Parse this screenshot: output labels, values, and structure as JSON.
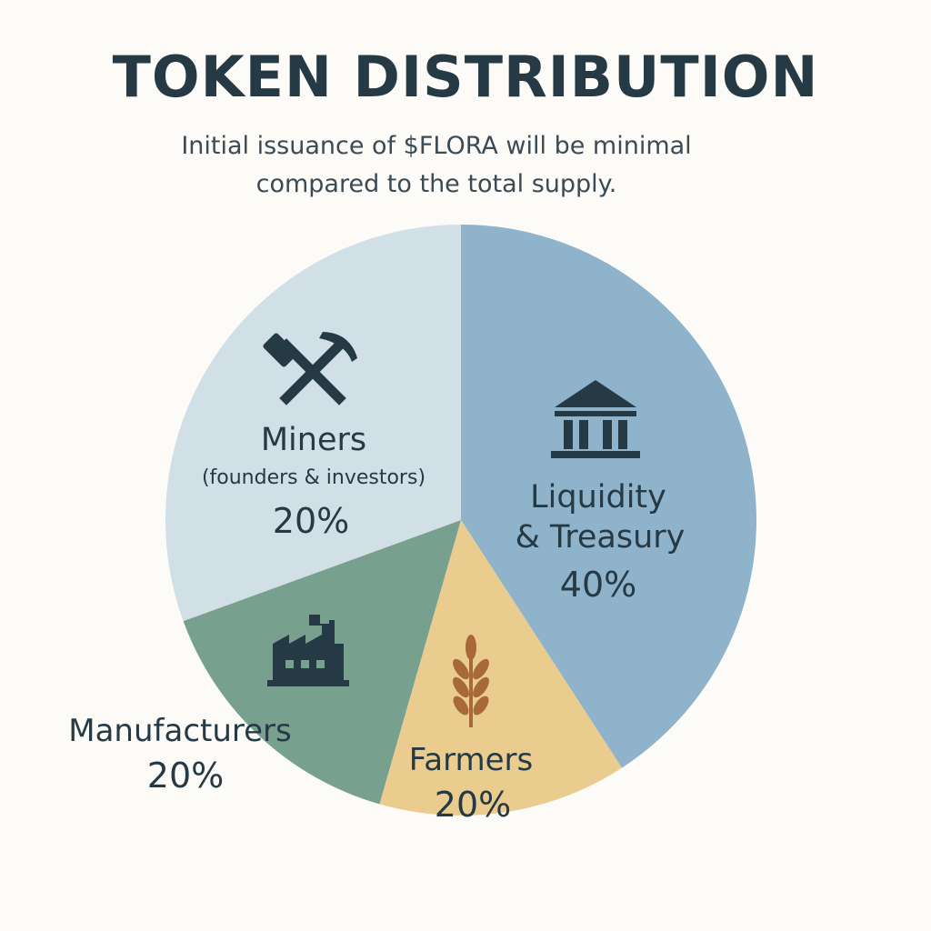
{
  "header": {
    "title": "TOKEN DISTRIBUTION",
    "subtitle_line1": "Initial issuance of $FLORA will be minimal",
    "subtitle_line2": "compared to the total supply."
  },
  "chart_data": {
    "type": "pie",
    "title": "TOKEN DISTRIBUTION",
    "slices": [
      {
        "label": "Liquidity",
        "label_line2": "& Treasury",
        "value": 40,
        "value_label": "40%",
        "color": "#8fb3cb",
        "icon": "bank-icon"
      },
      {
        "label": "Farmers",
        "value": 20,
        "value_label": "20%",
        "color": "#ebcc8f",
        "icon": "wheat-icon"
      },
      {
        "label": "Manufacturers",
        "value": 20,
        "value_label": "20%",
        "color": "#78a08f",
        "icon": "factory-icon"
      },
      {
        "label": "Miners",
        "sublabel": "(founders & investors)",
        "value": 20,
        "value_label": "20%",
        "color": "#d1dfe6",
        "icon": "hammer-pick-icon"
      }
    ]
  }
}
